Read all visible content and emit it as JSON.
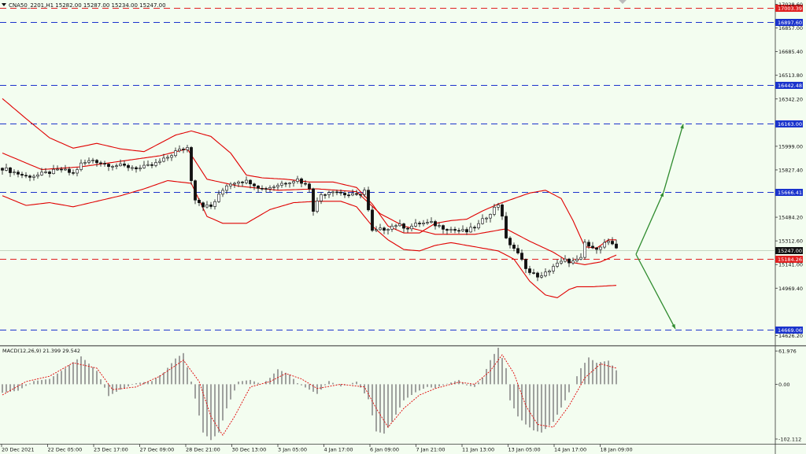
{
  "header": {
    "symbol_info": "CNA50_2201,H1  15282.00 15287.00 15234.00 15247.00",
    "menu_icon": "triangle-down-icon"
  },
  "colors": {
    "background": "#f3fdf0",
    "candle": "#111111",
    "bollinger": "#e00000",
    "level_blue": "#1a33cc",
    "level_red": "#e02020",
    "arrow": "#2e8b2e",
    "macd_hist": "#8a8a8a",
    "macd_signal": "#e00000"
  },
  "price_axis": {
    "min": 14560,
    "max": 17060,
    "ticks": [
      "17028.60",
      "16857.00",
      "16685.40",
      "16513.80",
      "16342.20",
      "15999.00",
      "15827.40",
      "15484.20",
      "15312.60",
      "15141.00",
      "14969.40",
      "14626.20"
    ],
    "tick_values": [
      17028.6,
      16857.0,
      16685.4,
      16513.8,
      16342.2,
      15999.0,
      15827.4,
      15484.2,
      15312.6,
      15141.0,
      14969.4,
      14626.2
    ]
  },
  "levels": [
    {
      "label": "17003.39",
      "value": 17003.39,
      "style": "red"
    },
    {
      "label": "16897.60",
      "value": 16897.6,
      "style": "blue"
    },
    {
      "label": "16442.48",
      "value": 16442.48,
      "style": "blue"
    },
    {
      "label": "16163.00",
      "value": 16163.0,
      "style": "blue"
    },
    {
      "label": "15666.41",
      "value": 15666.41,
      "style": "blue"
    },
    {
      "label": "15184.26",
      "value": 15184.26,
      "style": "red"
    },
    {
      "label": "14669.06",
      "value": 14669.06,
      "style": "blue"
    }
  ],
  "current_price": {
    "label": "15247.00",
    "value": 15247.0
  },
  "time_axis": [
    "20 Dec 2021",
    "22 Dec 05:00",
    "23 Dec 17:00",
    "27 Dec 09:00",
    "28 Dec 21:00",
    "30 Dec 13:00",
    "3 Jan 05:00",
    "4 Jan 17:00",
    "6 Jan 09:00",
    "7 Jan 21:00",
    "11 Jan 13:00",
    "13 Jan 05:00",
    "14 Jan 17:00",
    "18 Jan 09:00"
  ],
  "forecast": {
    "origin": {
      "bar": 161,
      "price": 15215
    },
    "up_targets": [
      {
        "bar": 168,
        "price": 15666
      },
      {
        "bar": 173,
        "price": 16160
      }
    ],
    "down_target": {
      "bar": 171,
      "price": 14675
    }
  },
  "macd": {
    "label": "MACD(12,26,9) 21.399 29.542",
    "min": -108,
    "max": 68,
    "ticks": [
      "61.976",
      "0.00",
      "-102.112"
    ],
    "tick_values": [
      61.976,
      0,
      -102.112
    ]
  },
  "chart_data": {
    "type": "candlestick",
    "title": "CNA50_2201,H1",
    "x_labels": [
      "20 Dec 2021",
      "22 Dec 05:00",
      "23 Dec 17:00",
      "27 Dec 09:00",
      "28 Dec 21:00",
      "30 Dec 13:00",
      "3 Jan 05:00",
      "4 Jan 17:00",
      "6 Jan 09:00",
      "7 Jan 21:00",
      "11 Jan 13:00",
      "13 Jan 05:00",
      "14 Jan 17:00",
      "18 Jan 09:00"
    ],
    "close_path": [
      [
        0,
        15840
      ],
      [
        3,
        15810
      ],
      [
        6,
        15780
      ],
      [
        9,
        15790
      ],
      [
        12,
        15810
      ],
      [
        15,
        15830
      ],
      [
        18,
        15800
      ],
      [
        20,
        15870
      ],
      [
        23,
        15900
      ],
      [
        26,
        15870
      ],
      [
        29,
        15860
      ],
      [
        32,
        15850
      ],
      [
        35,
        15840
      ],
      [
        38,
        15860
      ],
      [
        41,
        15900
      ],
      [
        44,
        15960
      ],
      [
        47,
        15990
      ],
      [
        48,
        15760
      ],
      [
        49,
        15620
      ],
      [
        51,
        15570
      ],
      [
        53,
        15560
      ],
      [
        55,
        15640
      ],
      [
        57,
        15720
      ],
      [
        60,
        15750
      ],
      [
        63,
        15740
      ],
      [
        66,
        15690
      ],
      [
        69,
        15710
      ],
      [
        72,
        15740
      ],
      [
        75,
        15760
      ],
      [
        78,
        15700
      ],
      [
        79,
        15540
      ],
      [
        81,
        15650
      ],
      [
        84,
        15680
      ],
      [
        87,
        15650
      ],
      [
        90,
        15640
      ],
      [
        92,
        15680
      ],
      [
        94,
        15380
      ],
      [
        97,
        15400
      ],
      [
        100,
        15430
      ],
      [
        103,
        15410
      ],
      [
        106,
        15440
      ],
      [
        109,
        15440
      ],
      [
        112,
        15410
      ],
      [
        115,
        15390
      ],
      [
        118,
        15380
      ],
      [
        121,
        15430
      ],
      [
        124,
        15520
      ],
      [
        126,
        15580
      ],
      [
        127,
        15500
      ],
      [
        128,
        15320
      ],
      [
        130,
        15260
      ],
      [
        132,
        15170
      ],
      [
        134,
        15080
      ],
      [
        137,
        15050
      ],
      [
        140,
        15130
      ],
      [
        143,
        15170
      ],
      [
        145,
        15160
      ],
      [
        147,
        15180
      ],
      [
        148,
        15300
      ],
      [
        150,
        15250
      ],
      [
        152,
        15280
      ],
      [
        154,
        15310
      ],
      [
        156,
        15247
      ]
    ],
    "bollinger_upper": [
      [
        0,
        16345
      ],
      [
        6,
        16200
      ],
      [
        12,
        16060
      ],
      [
        18,
        15985
      ],
      [
        24,
        16020
      ],
      [
        30,
        15980
      ],
      [
        36,
        15960
      ],
      [
        44,
        16080
      ],
      [
        48,
        16110
      ],
      [
        53,
        16070
      ],
      [
        58,
        15950
      ],
      [
        62,
        15790
      ],
      [
        66,
        15770
      ],
      [
        72,
        15760
      ],
      [
        78,
        15740
      ],
      [
        84,
        15740
      ],
      [
        90,
        15700
      ],
      [
        94,
        15580
      ],
      [
        98,
        15420
      ],
      [
        102,
        15370
      ],
      [
        106,
        15370
      ],
      [
        110,
        15440
      ],
      [
        114,
        15460
      ],
      [
        118,
        15470
      ],
      [
        122,
        15530
      ],
      [
        126,
        15580
      ],
      [
        130,
        15620
      ],
      [
        134,
        15660
      ],
      [
        138,
        15680
      ],
      [
        142,
        15620
      ],
      [
        145,
        15460
      ],
      [
        148,
        15270
      ],
      [
        151,
        15260
      ],
      [
        154,
        15320
      ],
      [
        156,
        15320
      ]
    ],
    "bollinger_middle": [
      [
        0,
        15950
      ],
      [
        10,
        15830
      ],
      [
        20,
        15850
      ],
      [
        30,
        15890
      ],
      [
        40,
        15930
      ],
      [
        47,
        15980
      ],
      [
        52,
        15760
      ],
      [
        60,
        15710
      ],
      [
        70,
        15680
      ],
      [
        80,
        15690
      ],
      [
        90,
        15670
      ],
      [
        96,
        15510
      ],
      [
        102,
        15420
      ],
      [
        110,
        15360
      ],
      [
        120,
        15360
      ],
      [
        128,
        15400
      ],
      [
        134,
        15310
      ],
      [
        140,
        15230
      ],
      [
        144,
        15160
      ],
      [
        148,
        15140
      ],
      [
        152,
        15160
      ],
      [
        156,
        15210
      ]
    ],
    "bollinger_lower": [
      [
        0,
        15640
      ],
      [
        6,
        15570
      ],
      [
        12,
        15590
      ],
      [
        18,
        15560
      ],
      [
        24,
        15600
      ],
      [
        30,
        15640
      ],
      [
        36,
        15690
      ],
      [
        42,
        15750
      ],
      [
        48,
        15730
      ],
      [
        52,
        15490
      ],
      [
        56,
        15440
      ],
      [
        62,
        15440
      ],
      [
        68,
        15540
      ],
      [
        74,
        15590
      ],
      [
        80,
        15600
      ],
      [
        86,
        15600
      ],
      [
        90,
        15560
      ],
      [
        94,
        15420
      ],
      [
        98,
        15320
      ],
      [
        102,
        15250
      ],
      [
        106,
        15240
      ],
      [
        110,
        15280
      ],
      [
        114,
        15300
      ],
      [
        120,
        15270
      ],
      [
        126,
        15240
      ],
      [
        130,
        15180
      ],
      [
        134,
        15020
      ],
      [
        138,
        14920
      ],
      [
        141,
        14900
      ],
      [
        144,
        14960
      ],
      [
        146,
        14980
      ],
      [
        150,
        14980
      ],
      [
        156,
        14990
      ]
    ],
    "macd_histogram_path": [
      [
        0,
        -16
      ],
      [
        4,
        -12
      ],
      [
        8,
        6
      ],
      [
        12,
        10
      ],
      [
        16,
        30
      ],
      [
        20,
        52
      ],
      [
        24,
        25
      ],
      [
        27,
        -22
      ],
      [
        30,
        -10
      ],
      [
        34,
        2
      ],
      [
        38,
        6
      ],
      [
        41,
        22
      ],
      [
        44,
        48
      ],
      [
        46,
        58
      ],
      [
        48,
        5
      ],
      [
        51,
        -90
      ],
      [
        53,
        -104
      ],
      [
        55,
        -90
      ],
      [
        57,
        -45
      ],
      [
        60,
        5
      ],
      [
        63,
        8
      ],
      [
        66,
        0
      ],
      [
        68,
        12
      ],
      [
        70,
        28
      ],
      [
        73,
        18
      ],
      [
        75,
        2
      ],
      [
        78,
        -10
      ],
      [
        80,
        -18
      ],
      [
        83,
        6
      ],
      [
        86,
        -4
      ],
      [
        88,
        0
      ],
      [
        90,
        5
      ],
      [
        93,
        -28
      ],
      [
        95,
        -88
      ],
      [
        97,
        -92
      ],
      [
        99,
        -70
      ],
      [
        102,
        -30
      ],
      [
        105,
        -15
      ],
      [
        108,
        -5
      ],
      [
        110,
        -7
      ],
      [
        113,
        1
      ],
      [
        116,
        8
      ],
      [
        118,
        -2
      ],
      [
        120,
        -5
      ],
      [
        122,
        12
      ],
      [
        124,
        45
      ],
      [
        126,
        68
      ],
      [
        128,
        30
      ],
      [
        129,
        -30
      ],
      [
        131,
        -60
      ],
      [
        133,
        -75
      ],
      [
        135,
        -86
      ],
      [
        137,
        -90
      ],
      [
        140,
        -70
      ],
      [
        143,
        -30
      ],
      [
        145,
        0
      ],
      [
        147,
        30
      ],
      [
        149,
        50
      ],
      [
        151,
        40
      ],
      [
        154,
        44
      ],
      [
        156,
        26
      ]
    ],
    "macd_signal_path": [
      [
        0,
        -20
      ],
      [
        6,
        5
      ],
      [
        12,
        15
      ],
      [
        18,
        40
      ],
      [
        24,
        30
      ],
      [
        28,
        -10
      ],
      [
        34,
        -5
      ],
      [
        40,
        15
      ],
      [
        46,
        45
      ],
      [
        50,
        5
      ],
      [
        53,
        -60
      ],
      [
        56,
        -95
      ],
      [
        59,
        -60
      ],
      [
        63,
        -5
      ],
      [
        68,
        5
      ],
      [
        72,
        20
      ],
      [
        76,
        10
      ],
      [
        80,
        -8
      ],
      [
        86,
        0
      ],
      [
        92,
        -5
      ],
      [
        95,
        -45
      ],
      [
        98,
        -80
      ],
      [
        102,
        -45
      ],
      [
        106,
        -20
      ],
      [
        110,
        -8
      ],
      [
        116,
        4
      ],
      [
        120,
        0
      ],
      [
        124,
        25
      ],
      [
        127,
        55
      ],
      [
        130,
        20
      ],
      [
        133,
        -40
      ],
      [
        136,
        -75
      ],
      [
        140,
        -80
      ],
      [
        144,
        -40
      ],
      [
        148,
        12
      ],
      [
        152,
        38
      ],
      [
        156,
        30
      ]
    ],
    "ylim": [
      14560,
      17060
    ]
  }
}
